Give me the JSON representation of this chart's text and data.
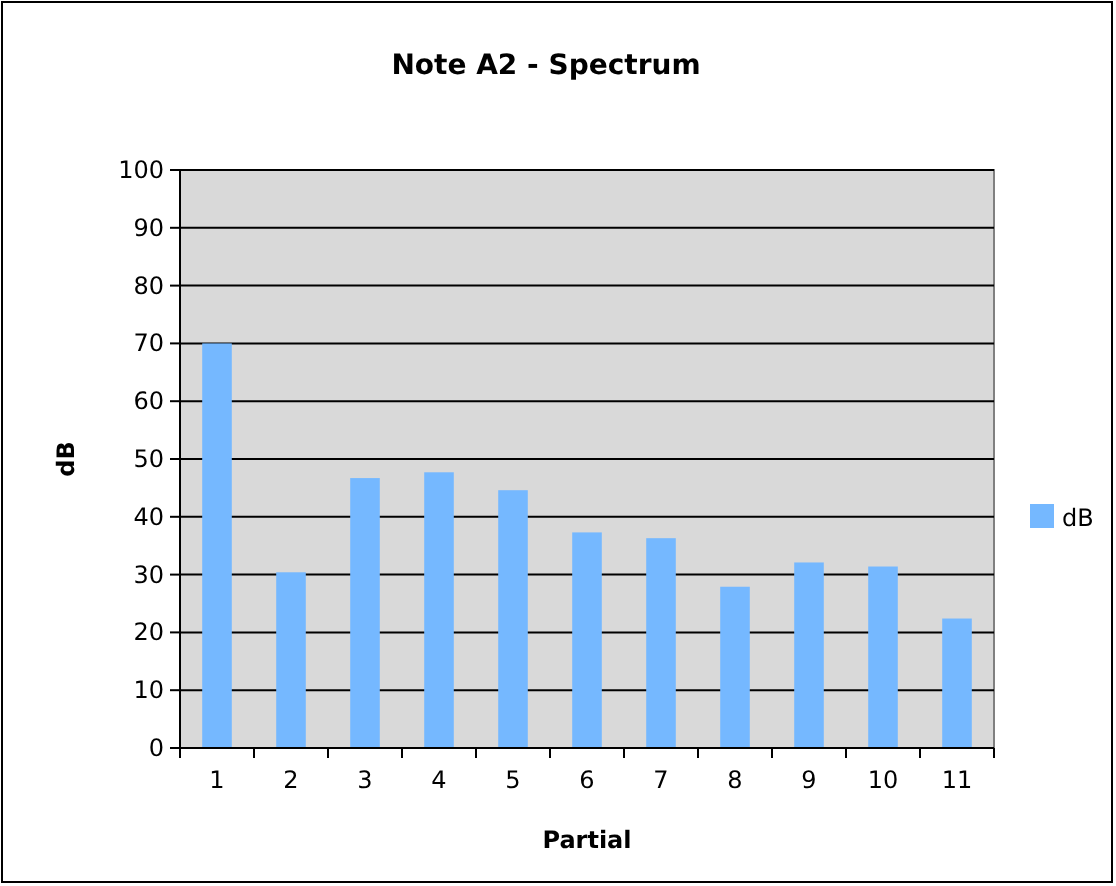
{
  "chart_data": {
    "type": "bar",
    "title": "Note A2 - Spectrum",
    "xlabel": "Partial",
    "ylabel": "dB",
    "categories": [
      "1",
      "2",
      "3",
      "4",
      "5",
      "6",
      "7",
      "8",
      "9",
      "10",
      "11"
    ],
    "series": [
      {
        "name": "dB",
        "color": "#75b8ff",
        "values": [
          70,
          30.4,
          46.7,
          47.7,
          44.6,
          37.3,
          36.3,
          27.9,
          32.1,
          31.4,
          22.4
        ]
      }
    ],
    "ylim": [
      0,
      100
    ],
    "yticks": [
      0,
      10,
      20,
      30,
      40,
      50,
      60,
      70,
      80,
      90,
      100
    ],
    "grid": "y",
    "legend": "right"
  }
}
